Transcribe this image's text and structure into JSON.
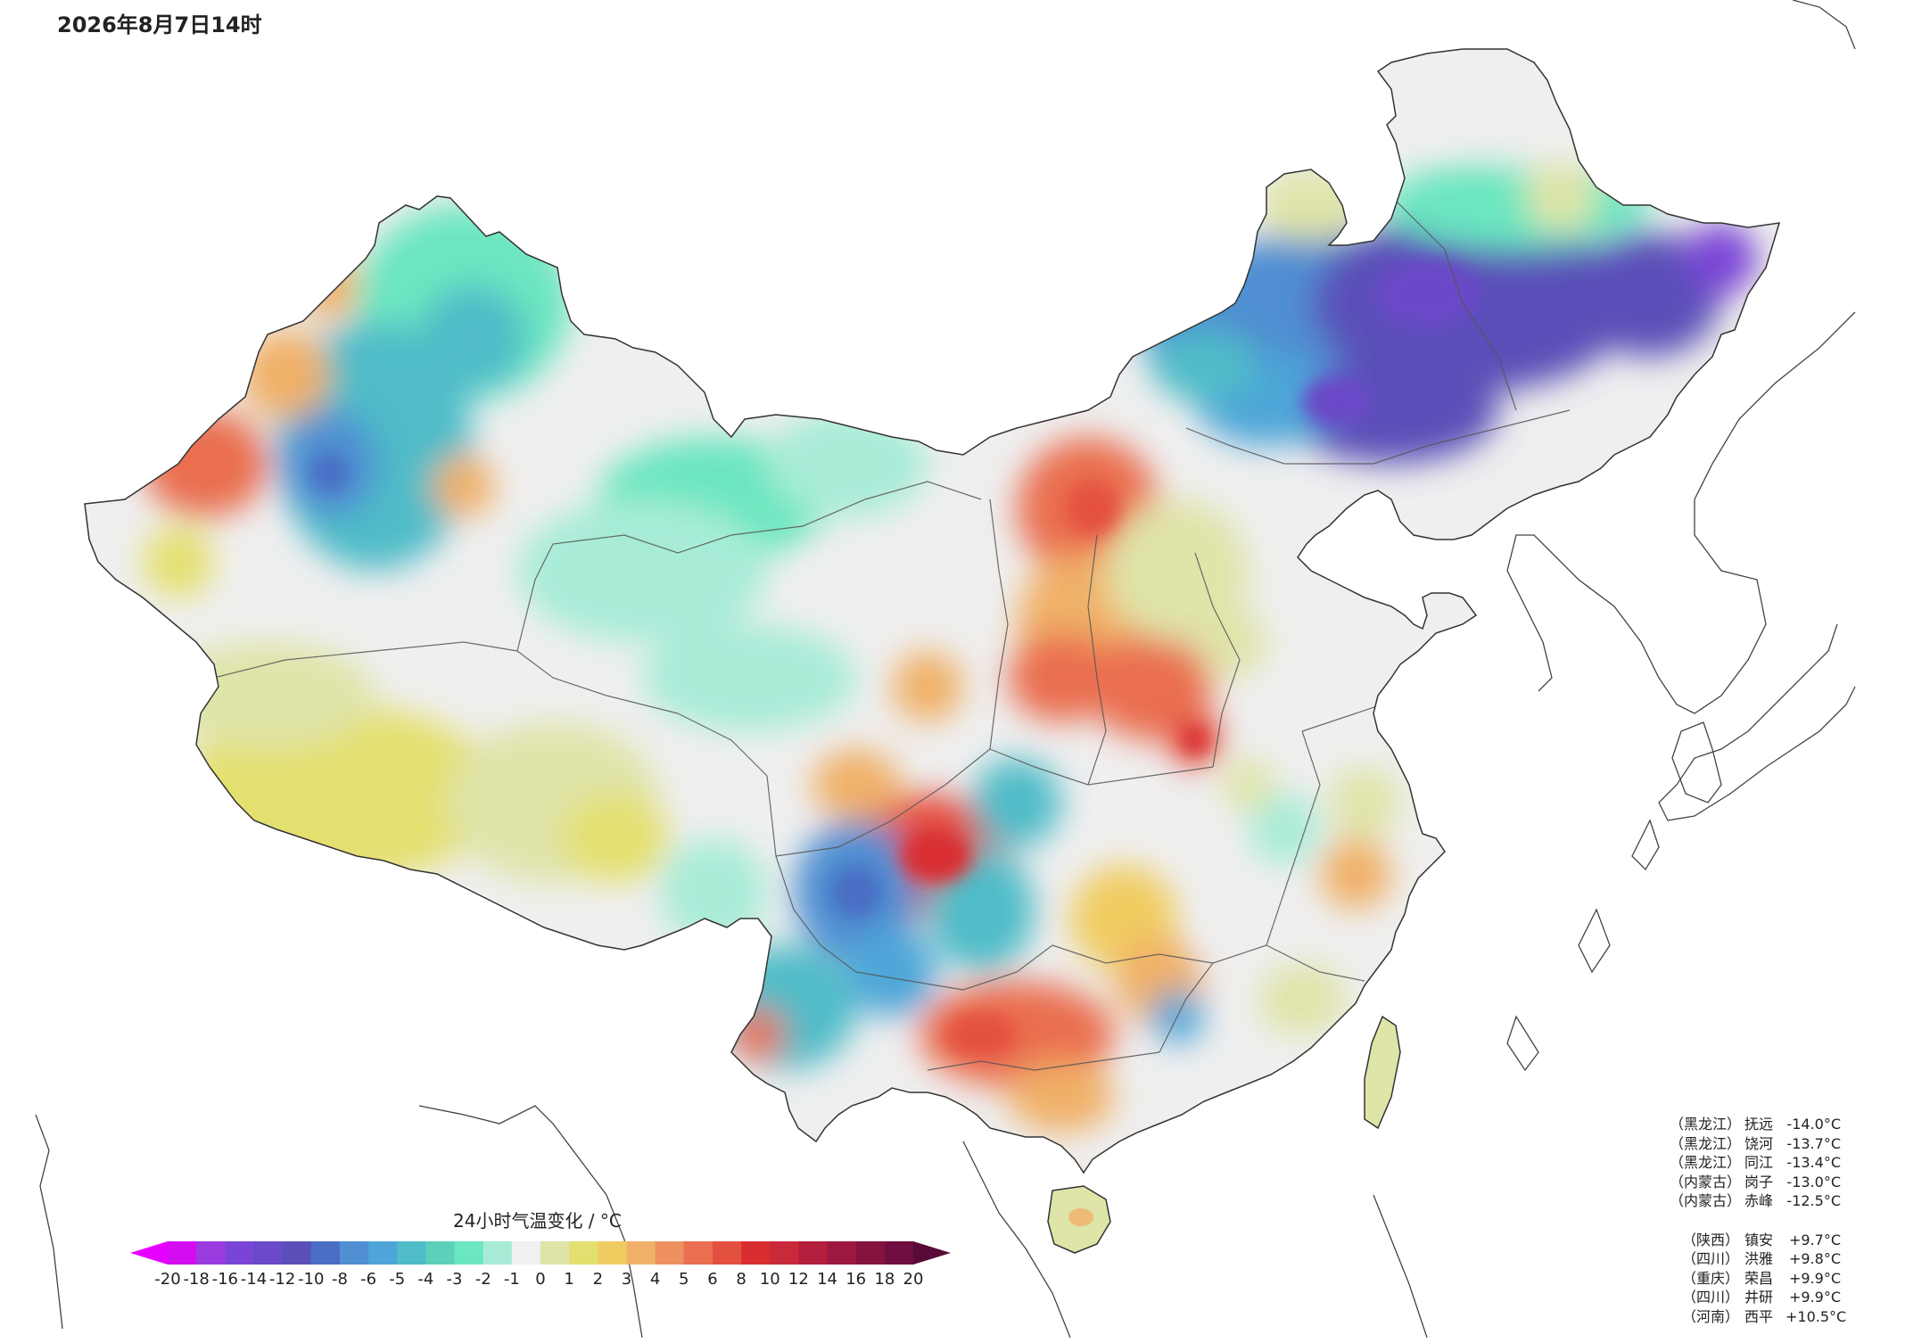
{
  "header": {
    "timestamp": "2026年8月7日14时"
  },
  "colorbar": {
    "title": "24小时气温变化 / °C",
    "ticks": [
      "-20",
      "-18",
      "-16",
      "-14",
      "-12",
      "-10",
      "-8",
      "-6",
      "-5",
      "-4",
      "-3",
      "-2",
      "-1",
      "0",
      "1",
      "2",
      "3",
      "4",
      "5",
      "6",
      "8",
      "10",
      "12",
      "14",
      "16",
      "18",
      "20"
    ],
    "colors": [
      "#d40df0",
      "#9a3be0",
      "#7a45d6",
      "#6a4ac8",
      "#5a50b8",
      "#4a6ec4",
      "#4f8fd2",
      "#4ea6d8",
      "#50bcc8",
      "#5cd0b8",
      "#6ae6c0",
      "#a8ecd8",
      "#f0f0f0",
      "#dfe4a8",
      "#e4e070",
      "#f0cc60",
      "#f0b068",
      "#ee9060",
      "#ea6e50",
      "#e45040",
      "#d92e30",
      "#c82a3a",
      "#b31f3c",
      "#9c1840",
      "#851340",
      "#700e40"
    ]
  },
  "map": {
    "color_scale": "24-hour temperature change (°C)",
    "features": [
      "China provincial boundaries",
      "coastlines",
      "Taiwan",
      "Hainan",
      "Korean Peninsula",
      "Japan"
    ]
  },
  "stations": {
    "lowest": [
      {
        "province": "（黑龙江）",
        "name": "抚远",
        "value": "-14.0°C"
      },
      {
        "province": "（黑龙江）",
        "name": "饶河",
        "value": "-13.7°C"
      },
      {
        "province": "（黑龙江）",
        "name": "同江",
        "value": "-13.4°C"
      },
      {
        "province": "（内蒙古）",
        "name": "岗子",
        "value": "-13.0°C"
      },
      {
        "province": "（内蒙古）",
        "name": "赤峰",
        "value": "-12.5°C"
      }
    ],
    "highest": [
      {
        "province": "（陕西）",
        "name": "镇安",
        "value": "+9.7°C"
      },
      {
        "province": "（四川）",
        "name": "洪雅",
        "value": "+9.8°C"
      },
      {
        "province": "（重庆）",
        "name": "荣昌",
        "value": "+9.9°C"
      },
      {
        "province": "（四川）",
        "name": "井研",
        "value": "+9.9°C"
      },
      {
        "province": "（河南）",
        "name": "西平",
        "value": "+10.5°C"
      }
    ]
  }
}
